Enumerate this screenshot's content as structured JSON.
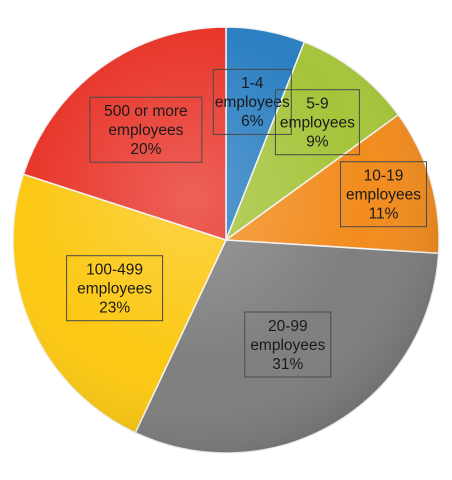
{
  "chart_data": {
    "type": "pie",
    "title": "",
    "start_angle_deg": 0,
    "direction": "clockwise",
    "slices": [
      {
        "name": "1-4 employees",
        "lines": [
          "1-4",
          "employees",
          "6%"
        ],
        "value": 6,
        "color": "#2b7fc2"
      },
      {
        "name": "5-9 employees",
        "lines": [
          "5-9",
          "employees",
          "9%"
        ],
        "value": 9,
        "color": "#a5c43a"
      },
      {
        "name": "10-19 employees",
        "lines": [
          "10-19",
          "employees",
          "11%"
        ],
        "value": 11,
        "color": "#f28c1e"
      },
      {
        "name": "20-99 employees",
        "lines": [
          "20-99",
          "employees",
          "31%"
        ],
        "value": 31,
        "color": "#7f7f7f"
      },
      {
        "name": "100-499 employees",
        "lines": [
          "100-499",
          "employees",
          "23%"
        ],
        "value": 23,
        "color": "#fcc813"
      },
      {
        "name": "500 or more employees",
        "lines": [
          "500 or more",
          "employees",
          "20%"
        ],
        "value": 20,
        "color": "#e8352a"
      }
    ],
    "legend": "none",
    "data_labels": "inside-boxed"
  }
}
